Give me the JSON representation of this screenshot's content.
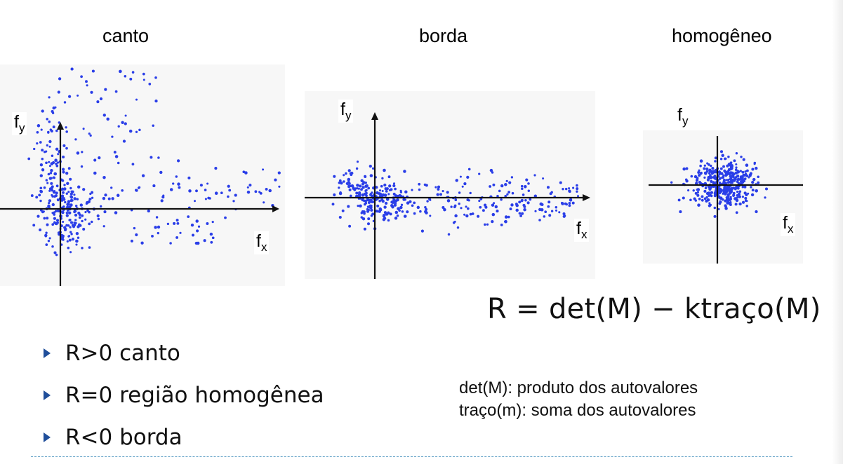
{
  "titles": {
    "canto": "canto",
    "borda": "borda",
    "homogeneo": "homogêneo"
  },
  "axis": {
    "fx_base": "f",
    "fx_sub": "x",
    "fy_base": "f",
    "fy_sub": "y"
  },
  "formula": "R = det(M) − ktraço(M)",
  "bullets": [
    "R>0 canto",
    "R=0 região homogênea",
    "R<0 borda"
  ],
  "notes": [
    "det(M): produto dos autovalores",
    "traço(m): soma dos autovalores"
  ],
  "colors": {
    "points": "#2a3ee8",
    "axes": "#111111",
    "bullet_marker": "#1f4e9a",
    "divider": "#6fa9cc"
  }
}
